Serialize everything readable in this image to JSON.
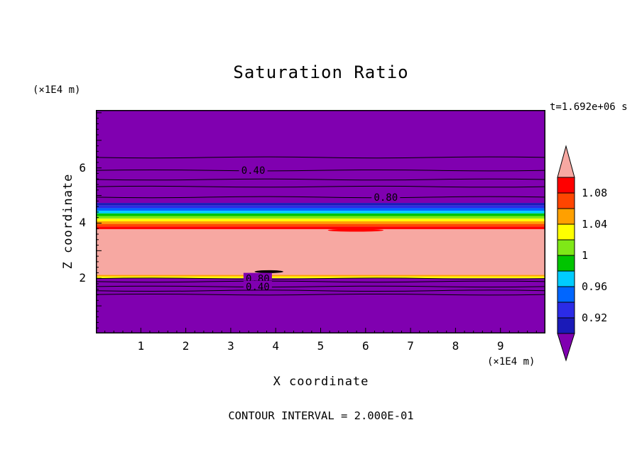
{
  "chart_data": {
    "type": "contour",
    "title": "Saturation Ratio",
    "time_annotation": "t=1.692e+06 s",
    "contour_interval_label": "CONTOUR INTERVAL = 2.000E-01",
    "x_axis": {
      "label": "X coordinate",
      "unit_label": "(×1E4 m)",
      "min": 0,
      "max": 10,
      "major_ticks": [
        1,
        2,
        3,
        4,
        5,
        6,
        7,
        8,
        9
      ],
      "minor_tick_step": 0.2
    },
    "y_axis": {
      "label": "Z coordinate",
      "unit_label": "(×1E4 m)",
      "min": 0,
      "max": 8.1,
      "major_ticks": [
        2,
        4,
        6
      ],
      "minor_tick_step": 0.2
    },
    "bands": [
      {
        "z0": 4.73,
        "z1": 8.1,
        "color": "#8000B0"
      },
      {
        "z0": 4.635,
        "z1": 4.73,
        "color": "#1A1AB8"
      },
      {
        "z0": 4.54,
        "z1": 4.635,
        "color": "#2B2BE6"
      },
      {
        "z0": 4.445,
        "z1": 4.54,
        "color": "#0066FF"
      },
      {
        "z0": 4.35,
        "z1": 4.445,
        "color": "#00CCFF"
      },
      {
        "z0": 4.255,
        "z1": 4.35,
        "color": "#00C400"
      },
      {
        "z0": 4.16,
        "z1": 4.255,
        "color": "#7FE817"
      },
      {
        "z0": 4.065,
        "z1": 4.16,
        "color": "#FFFF00"
      },
      {
        "z0": 3.97,
        "z1": 4.065,
        "color": "#FFA000"
      },
      {
        "z0": 3.875,
        "z1": 3.97,
        "color": "#FF4500"
      },
      {
        "z0": 3.78,
        "z1": 3.875,
        "color": "#FF0000"
      },
      {
        "z0": 2.12,
        "z1": 3.78,
        "color": "#F7A8A2"
      },
      {
        "z0": 2.065,
        "z1": 2.12,
        "color": "#FFA000"
      },
      {
        "z0": 2.0,
        "z1": 2.065,
        "color": "#FFFF00"
      },
      {
        "z0": 0.0,
        "z1": 2.0,
        "color": "#8000B0"
      }
    ],
    "contour_lines": [
      {
        "z": 6.38
      },
      {
        "z": 5.91,
        "label": "0.40",
        "label_x": 3.5
      },
      {
        "z": 5.58
      },
      {
        "z": 5.32
      },
      {
        "z": 4.94,
        "label": "0.80",
        "label_x": 6.45
      },
      {
        "z": 1.99,
        "label": "0.80",
        "label_x": 3.6
      },
      {
        "z": 1.88
      },
      {
        "z": 1.7,
        "label": "0.40",
        "label_x": 3.6
      },
      {
        "z": 1.55
      },
      {
        "z": 1.41
      }
    ],
    "features": [
      {
        "shape": "ellipse",
        "x": 5.78,
        "z": 3.74,
        "rx": 0.62,
        "rz": 0.05,
        "color": "#FF0000"
      },
      {
        "shape": "ellipse",
        "x": 3.85,
        "z": 2.24,
        "rx": 0.32,
        "rz": 0.04,
        "color": "#000000"
      }
    ],
    "colorbar": {
      "min": 0.9,
      "max": 1.1,
      "cell_size": 0.02,
      "cell_colors_bottom_to_top": [
        "#1A1AB8",
        "#2B2BE6",
        "#0066FF",
        "#00CCFF",
        "#00C400",
        "#7FE817",
        "#FFFF00",
        "#FFA000",
        "#FF4500",
        "#FF0000"
      ],
      "under_arrow_color": "#8000B0",
      "over_arrow_color": "#F7A8A2",
      "labels": [
        {
          "value": 1.08,
          "text": "1.08"
        },
        {
          "value": 1.04,
          "text": "1.04"
        },
        {
          "value": 1.0,
          "text": "1"
        },
        {
          "value": 0.96,
          "text": "0.96"
        },
        {
          "value": 0.92,
          "text": "0.92"
        }
      ]
    }
  }
}
